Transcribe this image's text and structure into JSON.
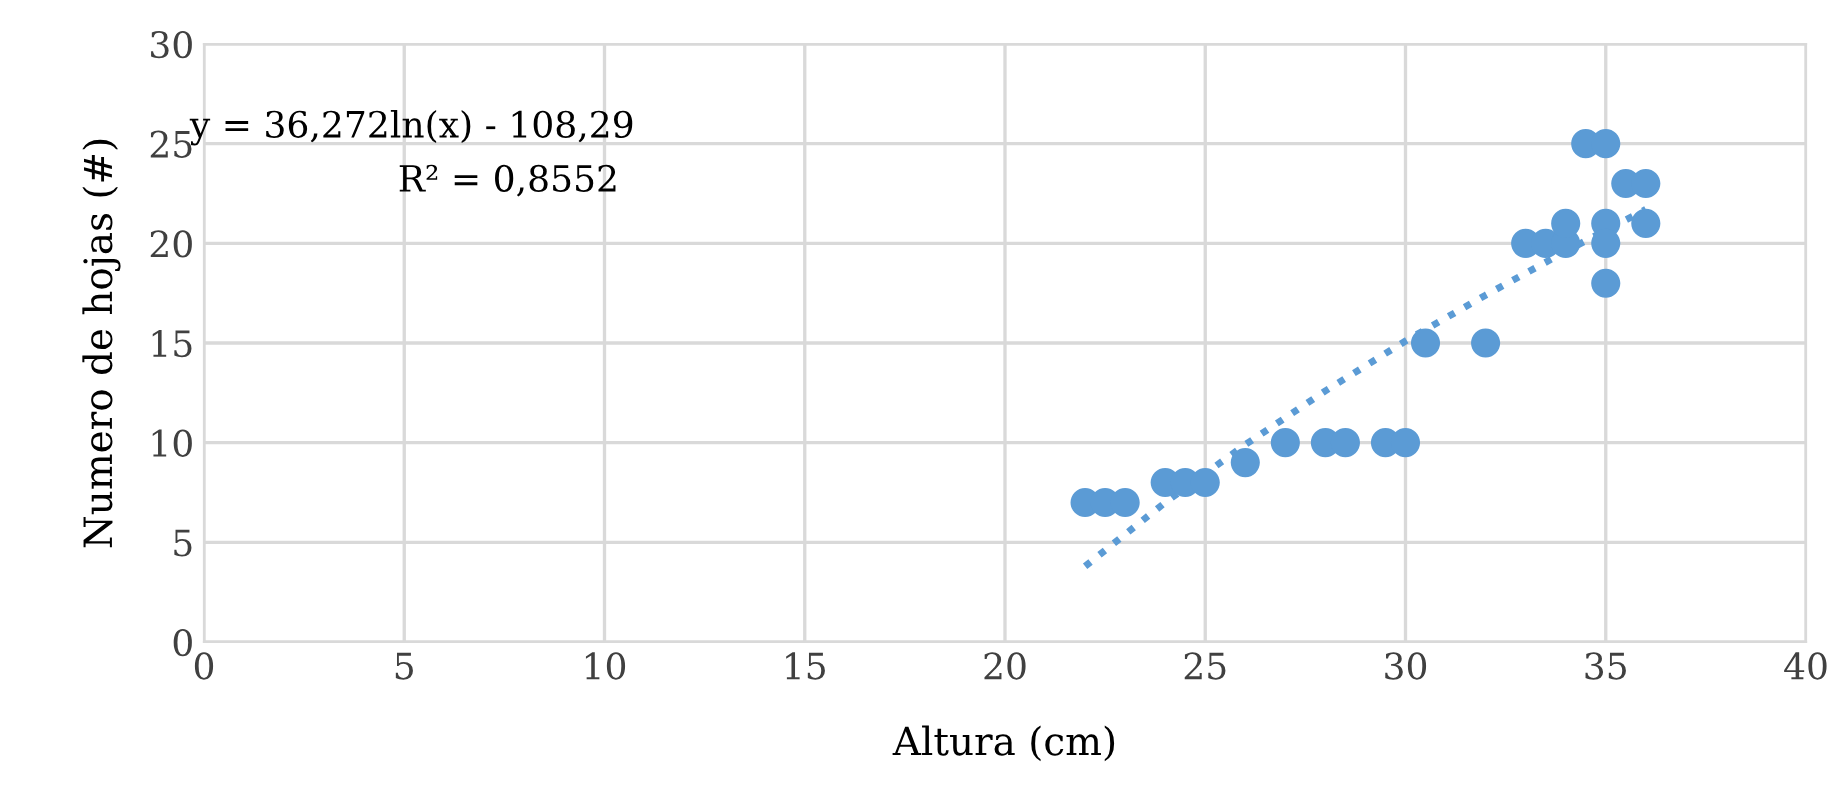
{
  "chart_data": {
    "type": "scatter",
    "xlabel": "Altura (cm)",
    "ylabel": "Numero de hojas (#)",
    "annotations": [
      "y = 36,272ln(x) - 108,29",
      "R² = 0,8552"
    ],
    "series": [
      {
        "color": "#5b9bd5",
        "marker": "circle",
        "x": [
          22,
          22.5,
          23,
          24,
          24.5,
          25,
          26,
          27,
          28,
          28.5,
          29.5,
          30,
          30.5,
          32,
          33,
          33.5,
          34,
          34,
          34.5,
          35,
          35,
          35,
          35,
          35.5,
          36,
          36
        ],
        "values": [
          7,
          7,
          7,
          8,
          8,
          8,
          9,
          10,
          10,
          10,
          10,
          10,
          15,
          15,
          20,
          20,
          20,
          21,
          25,
          25,
          21,
          20,
          18,
          23,
          23,
          21
        ]
      },
      {
        "type": "line",
        "color": "#5b9bd5",
        "marker": "none",
        "line_style": "dotted",
        "x": [
          22,
          24,
          26,
          28,
          30,
          32,
          34,
          36
        ],
        "values": [
          3.8,
          7.0,
          9.9,
          12.6,
          15.1,
          17.4,
          19.6,
          21.7
        ]
      }
    ],
    "xlim": [
      0,
      40
    ],
    "xticks": [
      0,
      5,
      10,
      15,
      20,
      25,
      30,
      35,
      40
    ],
    "ylim": [
      0,
      30
    ],
    "yticks": [
      0,
      5,
      10,
      15,
      20,
      25,
      30
    ],
    "grid": true
  }
}
